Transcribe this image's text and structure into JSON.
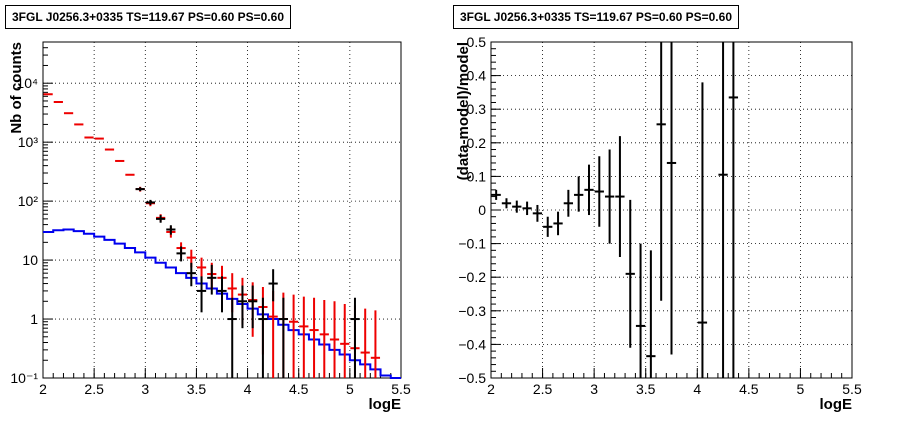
{
  "chart_data": [
    {
      "type": "line",
      "title": "3FGL J0256.3+0335 TS=119.67 PS=0.60 PS=0.60",
      "xlabel": "logE",
      "ylabel": "Nb of counts",
      "xlim": [
        2,
        5.5
      ],
      "ylim": [
        0.1,
        50000
      ],
      "yscale": "log",
      "grid": true,
      "x_ticks": [
        "2",
        "2.5",
        "3",
        "3.5",
        "4",
        "4.5",
        "5",
        "5.5"
      ],
      "y_ticks": [
        "10⁻¹",
        "1",
        "10",
        "10²",
        "10³",
        "10⁴"
      ],
      "series": [
        {
          "color": "#0000ee",
          "style": "step",
          "bin_edges": [
            2.0,
            2.1,
            2.2,
            2.3,
            2.4,
            2.5,
            2.6,
            2.7,
            2.8,
            2.9,
            3.0,
            3.1,
            3.2,
            3.3,
            3.4,
            3.5,
            3.6,
            3.7,
            3.8,
            3.9,
            4.0,
            4.1,
            4.2,
            4.3,
            4.4,
            4.5,
            4.6,
            4.7,
            4.8,
            4.9,
            5.0,
            5.1,
            5.2,
            5.3,
            5.4,
            5.5
          ],
          "values": [
            30,
            32,
            33,
            31,
            28,
            25,
            22,
            19,
            16,
            13.5,
            11,
            9,
            7.5,
            6,
            5,
            4,
            3.3,
            2.7,
            2.2,
            1.8,
            1.5,
            1.2,
            1.0,
            0.8,
            0.65,
            0.55,
            0.45,
            0.37,
            0.3,
            0.25,
            0.2,
            0.17,
            0.14,
            0.11,
            0.1
          ]
        },
        {
          "color": "#ee0000",
          "style": "errorbar",
          "points": [
            {
              "x": 2.05,
              "y": 6500,
              "lo": 6500,
              "hi": 6500
            },
            {
              "x": 2.15,
              "y": 4800,
              "lo": 4800,
              "hi": 4800
            },
            {
              "x": 2.25,
              "y": 3100,
              "lo": 3100,
              "hi": 3100
            },
            {
              "x": 2.35,
              "y": 2000,
              "lo": 2000,
              "hi": 2000
            },
            {
              "x": 2.45,
              "y": 1200,
              "lo": 1200,
              "hi": 1200
            },
            {
              "x": 2.55,
              "y": 1150,
              "lo": 1150,
              "hi": 1150
            },
            {
              "x": 2.65,
              "y": 750,
              "lo": 750,
              "hi": 750
            },
            {
              "x": 2.75,
              "y": 480,
              "lo": 480,
              "hi": 480
            },
            {
              "x": 2.85,
              "y": 280,
              "lo": 280,
              "hi": 280
            },
            {
              "x": 2.95,
              "y": 160,
              "lo": 145,
              "hi": 175
            },
            {
              "x": 3.05,
              "y": 92,
              "lo": 82,
              "hi": 102
            },
            {
              "x": 3.15,
              "y": 52,
              "lo": 45,
              "hi": 60
            },
            {
              "x": 3.25,
              "y": 30,
              "lo": 24,
              "hi": 37
            },
            {
              "x": 3.35,
              "y": 16,
              "lo": 12,
              "hi": 20
            },
            {
              "x": 3.45,
              "y": 11,
              "lo": 7.5,
              "hi": 15
            },
            {
              "x": 3.55,
              "y": 7.5,
              "lo": 4.5,
              "hi": 11
            },
            {
              "x": 3.65,
              "y": 5.8,
              "lo": 3.2,
              "hi": 9
            },
            {
              "x": 3.75,
              "y": 5.0,
              "lo": 2.5,
              "hi": 8
            },
            {
              "x": 3.85,
              "y": 3.3,
              "lo": 1.3,
              "hi": 6
            },
            {
              "x": 3.95,
              "y": 2.6,
              "lo": 0.8,
              "hi": 5
            },
            {
              "x": 4.05,
              "y": 2.1,
              "lo": 0.5,
              "hi": 4.2
            },
            {
              "x": 4.15,
              "y": 1.6,
              "lo": 0.25,
              "hi": 3.5
            },
            {
              "x": 4.25,
              "y": 1.1,
              "lo": 0.1,
              "hi": 3.0
            },
            {
              "x": 4.35,
              "y": 1.0,
              "lo": 0.1,
              "hi": 2.8
            },
            {
              "x": 4.45,
              "y": 0.9,
              "lo": 0.1,
              "hi": 2.6
            },
            {
              "x": 4.55,
              "y": 0.75,
              "lo": 0.1,
              "hi": 2.4
            },
            {
              "x": 4.65,
              "y": 0.65,
              "lo": 0.1,
              "hi": 2.3
            },
            {
              "x": 4.75,
              "y": 0.55,
              "lo": 0.1,
              "hi": 2.1
            },
            {
              "x": 4.85,
              "y": 0.45,
              "lo": 0.1,
              "hi": 2.0
            },
            {
              "x": 4.95,
              "y": 0.38,
              "lo": 0.1,
              "hi": 1.8
            },
            {
              "x": 5.05,
              "y": 0.32,
              "lo": 0.1,
              "hi": 1.7
            },
            {
              "x": 5.15,
              "y": 0.27,
              "lo": 0.1,
              "hi": 1.5
            },
            {
              "x": 5.25,
              "y": 0.22,
              "lo": 0.1,
              "hi": 1.4
            }
          ]
        },
        {
          "color": "#000000",
          "style": "errorbar",
          "points": [
            {
              "x": 2.95,
              "y": 160,
              "lo": 148,
              "hi": 172
            },
            {
              "x": 3.05,
              "y": 95,
              "lo": 86,
              "hi": 105
            },
            {
              "x": 3.15,
              "y": 50,
              "lo": 43,
              "hi": 58
            },
            {
              "x": 3.25,
              "y": 33,
              "lo": 27,
              "hi": 39
            },
            {
              "x": 3.35,
              "y": 13,
              "lo": 9.5,
              "hi": 17
            },
            {
              "x": 3.45,
              "y": 6,
              "lo": 3.6,
              "hi": 9
            },
            {
              "x": 3.55,
              "y": 3.0,
              "lo": 1.3,
              "hi": 5.3
            },
            {
              "x": 3.65,
              "y": 5.0,
              "lo": 2.6,
              "hi": 8.3
            },
            {
              "x": 3.75,
              "y": 3.0,
              "lo": 1.3,
              "hi": 5.3
            },
            {
              "x": 3.85,
              "y": 1.0,
              "lo": 0.1,
              "hi": 2.3
            },
            {
              "x": 3.95,
              "y": 2.0,
              "lo": 0.7,
              "hi": 3.7
            },
            {
              "x": 4.05,
              "y": 2.0,
              "lo": 0.7,
              "hi": 3.7
            },
            {
              "x": 4.15,
              "y": 1.0,
              "lo": 0.1,
              "hi": 2.3
            },
            {
              "x": 4.25,
              "y": 4.0,
              "lo": 2.0,
              "hi": 7.0
            },
            {
              "x": 4.35,
              "y": 1.0,
              "lo": 0.1,
              "hi": 2.3
            },
            {
              "x": 5.05,
              "y": 1.0,
              "lo": 0.1,
              "hi": 2.3
            }
          ]
        }
      ]
    },
    {
      "type": "scatter",
      "title": "3FGL J0256.3+0335 TS=119.67 PS=0.60 PS=0.60",
      "xlabel": "logE",
      "ylabel": "(data-model)/model",
      "xlim": [
        2,
        5.5
      ],
      "ylim": [
        -0.5,
        0.5
      ],
      "grid": true,
      "x_ticks": [
        "2",
        "2.5",
        "3",
        "3.5",
        "4",
        "4.5",
        "5",
        "5.5"
      ],
      "y_ticks": [
        "−0.5",
        "−0.4",
        "−0.3",
        "−0.2",
        "−0.1",
        "0",
        "0.1",
        "0.2",
        "0.3",
        "0.4",
        "0.5"
      ],
      "series": [
        {
          "color": "#000000",
          "style": "errorbar",
          "points": [
            {
              "x": 2.05,
              "y": 0.045,
              "lo": 0.03,
              "hi": 0.06
            },
            {
              "x": 2.15,
              "y": 0.02,
              "lo": 0.005,
              "hi": 0.035
            },
            {
              "x": 2.25,
              "y": 0.01,
              "lo": -0.008,
              "hi": 0.028
            },
            {
              "x": 2.35,
              "y": 0.005,
              "lo": -0.015,
              "hi": 0.025
            },
            {
              "x": 2.45,
              "y": -0.01,
              "lo": -0.035,
              "hi": 0.015
            },
            {
              "x": 2.55,
              "y": -0.05,
              "lo": -0.08,
              "hi": -0.02
            },
            {
              "x": 2.65,
              "y": -0.04,
              "lo": -0.075,
              "hi": -0.005
            },
            {
              "x": 2.75,
              "y": 0.02,
              "lo": -0.02,
              "hi": 0.06
            },
            {
              "x": 2.85,
              "y": 0.045,
              "lo": -0.005,
              "hi": 0.1
            },
            {
              "x": 2.95,
              "y": 0.06,
              "lo": -0.015,
              "hi": 0.135
            },
            {
              "x": 3.05,
              "y": 0.055,
              "lo": -0.05,
              "hi": 0.16
            },
            {
              "x": 3.15,
              "y": 0.04,
              "lo": -0.1,
              "hi": 0.18
            },
            {
              "x": 3.25,
              "y": 0.04,
              "lo": -0.14,
              "hi": 0.22
            },
            {
              "x": 3.35,
              "y": -0.19,
              "lo": -0.41,
              "hi": 0.03
            },
            {
              "x": 3.45,
              "y": -0.345,
              "lo": -0.5,
              "hi": -0.1
            },
            {
              "x": 3.55,
              "y": -0.435,
              "lo": -0.5,
              "hi": -0.12
            },
            {
              "x": 3.65,
              "y": 0.255,
              "lo": -0.27,
              "hi": 0.5
            },
            {
              "x": 3.75,
              "y": 0.14,
              "lo": -0.43,
              "hi": 0.5
            },
            {
              "x": 4.05,
              "y": -0.335,
              "lo": -0.5,
              "hi": 0.38
            },
            {
              "x": 4.25,
              "y": 0.105,
              "lo": -0.5,
              "hi": 0.5
            },
            {
              "x": 4.35,
              "y": 0.335,
              "lo": -0.5,
              "hi": 0.5
            }
          ]
        }
      ]
    }
  ]
}
